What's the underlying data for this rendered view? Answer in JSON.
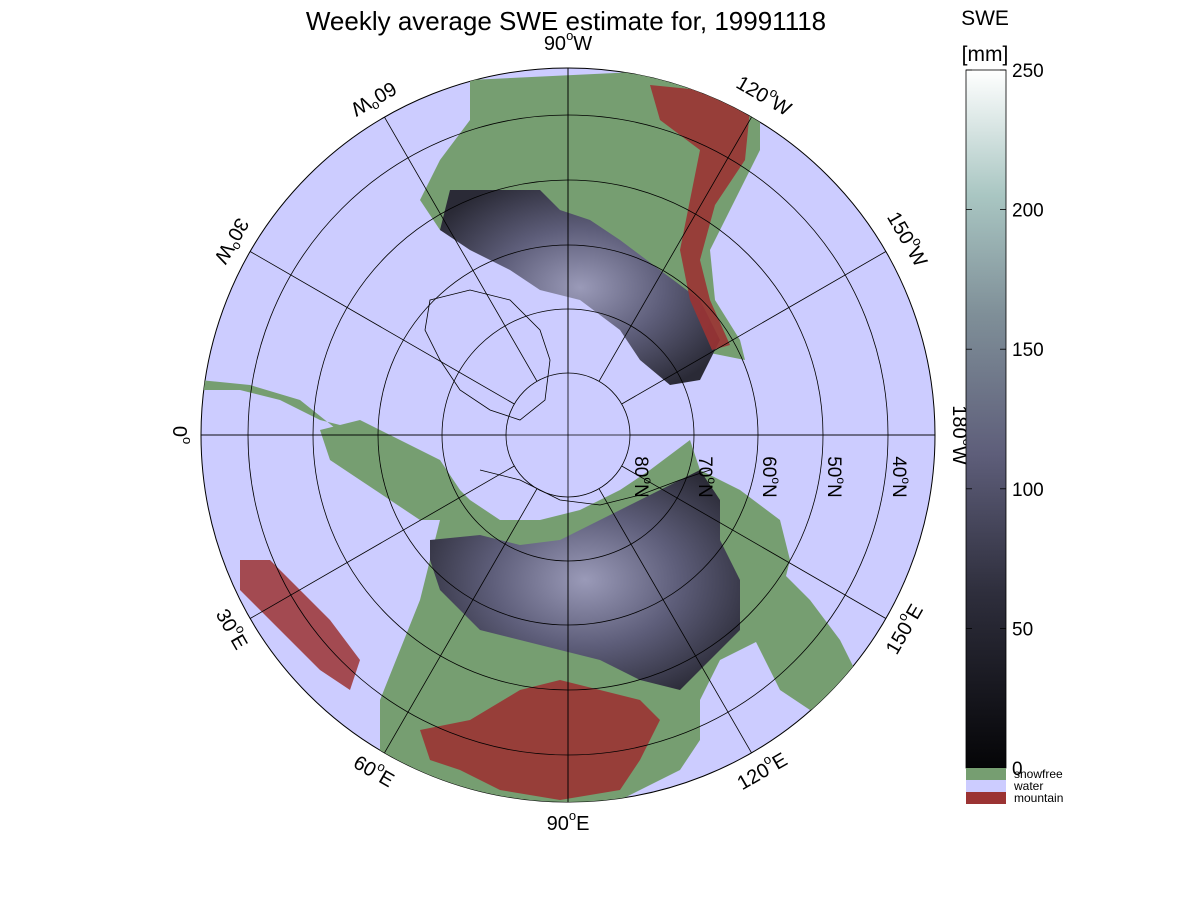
{
  "title": "Weekly average SWE estimate for, 19991118",
  "colors": {
    "water": "#ccccff",
    "snowfree": "#769e71",
    "mountain": "#9b3333",
    "snow_low": "#0a0a0c",
    "snow_mid": "#5e5e7a",
    "snow_high": "#ffffff",
    "grid": "#000000"
  },
  "map": {
    "projection": "north polar stereographic",
    "lon_labels": [
      {
        "text": "90",
        "deg": "o",
        "hemi": "W"
      },
      {
        "text": "120",
        "deg": "o",
        "hemi": "W"
      },
      {
        "text": "150",
        "deg": "o",
        "hemi": "W"
      },
      {
        "text": "180",
        "deg": "o",
        "hemi": "W"
      },
      {
        "text": "150",
        "deg": "o",
        "hemi": "E"
      },
      {
        "text": "120",
        "deg": "o",
        "hemi": "E"
      },
      {
        "text": "90",
        "deg": "o",
        "hemi": "E"
      },
      {
        "text": "60",
        "deg": "o",
        "hemi": "E"
      },
      {
        "text": "30",
        "deg": "o",
        "hemi": "E"
      },
      {
        "text": "0",
        "deg": "o",
        "hemi": ""
      },
      {
        "text": "30",
        "deg": "o",
        "hemi": "W"
      },
      {
        "text": "60",
        "deg": "o",
        "hemi": "W"
      }
    ],
    "lat_labels": [
      {
        "text": "80",
        "deg": "o",
        "hemi": "N"
      },
      {
        "text": "70",
        "deg": "o",
        "hemi": "N"
      },
      {
        "text": "60",
        "deg": "o",
        "hemi": "N"
      },
      {
        "text": "50",
        "deg": "o",
        "hemi": "N"
      },
      {
        "text": "40",
        "deg": "o",
        "hemi": "N"
      }
    ]
  },
  "colorbar": {
    "title_line1": "SWE",
    "title_line2": "[mm]",
    "min": 0,
    "max": 250,
    "ticks": [
      "0",
      "50",
      "100",
      "150",
      "200",
      "250"
    ]
  },
  "legend": {
    "items": [
      {
        "label": "snowfree",
        "color": "#769e71"
      },
      {
        "label": "water",
        "color": "#ccccff"
      },
      {
        "label": "mountain",
        "color": "#9b3333"
      }
    ]
  }
}
